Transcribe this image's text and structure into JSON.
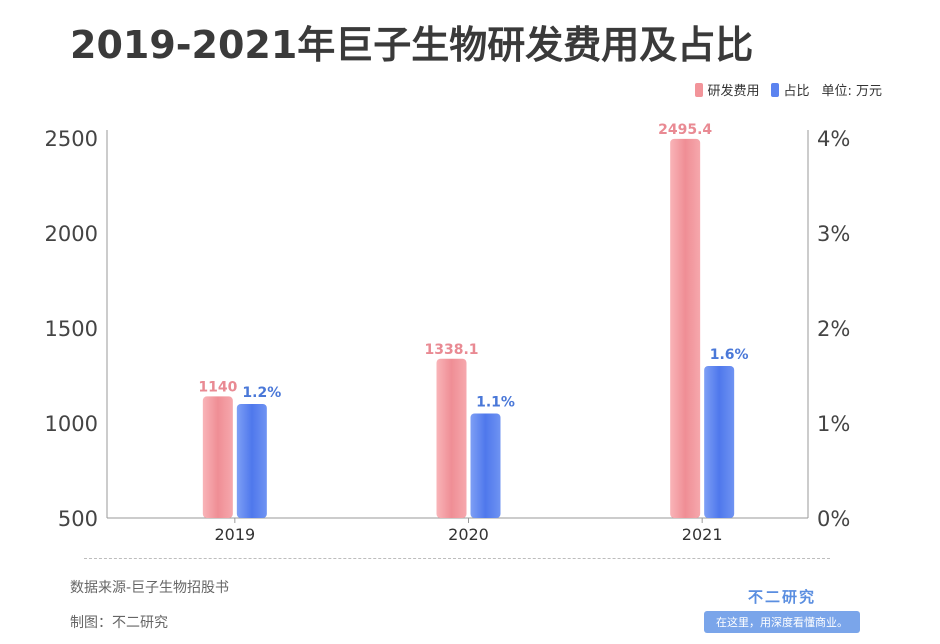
{
  "title": "2019-2021年巨子生物研发费用及占比",
  "legend": {
    "items": [
      {
        "label": "研发费用",
        "color": "#f2949a"
      },
      {
        "label": "占比",
        "color": "#5b83f0"
      }
    ],
    "unit": "单位: 万元"
  },
  "chart_data": {
    "type": "bar",
    "categories": [
      "2019",
      "2020",
      "2021"
    ],
    "series": [
      {
        "name": "研发费用",
        "axis": "left",
        "values": [
          1140,
          1338.1,
          2495.4
        ],
        "labels": [
          "1140",
          "1338.1",
          "2495.4"
        ],
        "color": "#f2949a",
        "label_color": "#e98a93"
      },
      {
        "name": "占比",
        "axis": "right",
        "values": [
          1.2,
          1.1,
          1.6
        ],
        "labels": [
          "1.2%",
          "1.1%",
          "1.6%"
        ],
        "color": "#5b83f0",
        "label_color": "#4a78d8"
      }
    ],
    "ylim_left": [
      500,
      2500
    ],
    "yticks_left": [
      "2500",
      "2000",
      "1500",
      "1000",
      "500"
    ],
    "ylim_right": [
      0,
      4
    ],
    "yticks_right": [
      "4%",
      "3%",
      "2%",
      "1%",
      "0%"
    ],
    "grid": false,
    "legend_position": "top-right"
  },
  "footer": {
    "source": "数据来源-巨子生物招股书",
    "maker": "制图：不二研究"
  },
  "brand": {
    "name": "不二研究",
    "slogan": "在这里，用深度看懂商业。"
  }
}
